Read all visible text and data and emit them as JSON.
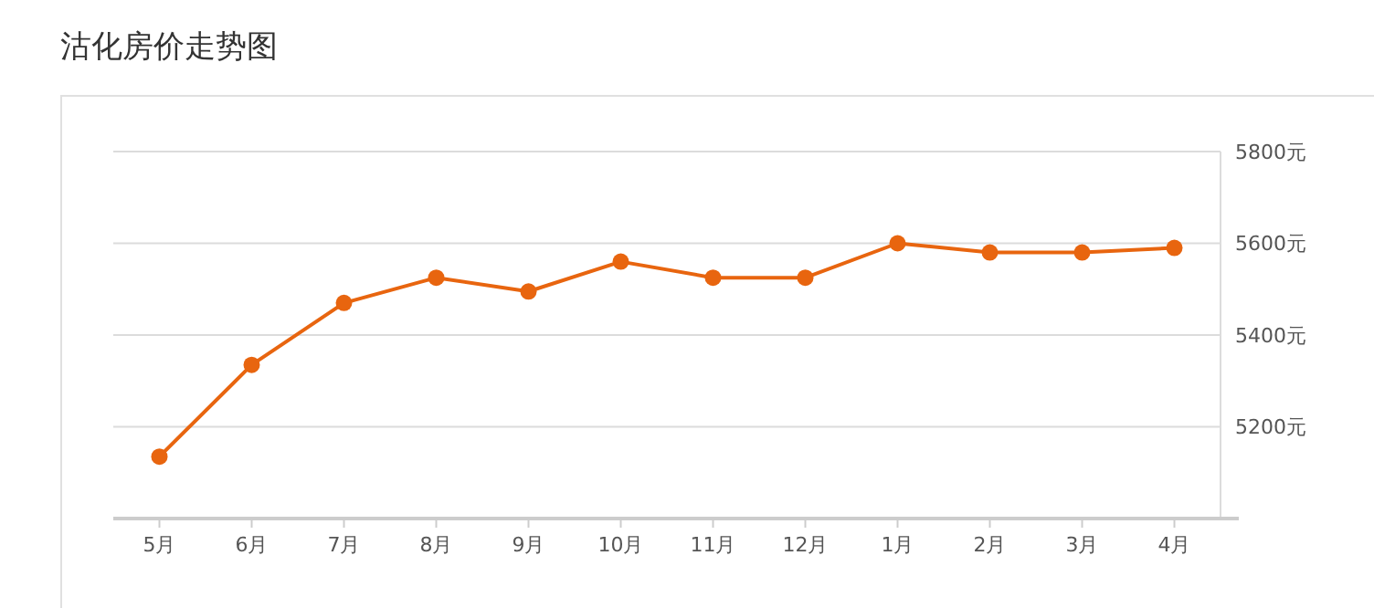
{
  "chart_data": {
    "type": "line",
    "title": "沽化房价走势图",
    "categories": [
      "5月",
      "6月",
      "7月",
      "8月",
      "9月",
      "10月",
      "11月",
      "12月",
      "1月",
      "2月",
      "3月",
      "4月"
    ],
    "series": [
      {
        "color": "#e8650f",
        "values": [
          5135,
          5335,
          5470,
          5525,
          5495,
          5560,
          5525,
          5525,
          5600,
          5580,
          5580,
          5590
        ]
      }
    ],
    "ylim": [
      5000,
      5800
    ],
    "yticks": [
      {
        "value": 5200,
        "label": "5200元"
      },
      {
        "value": 5400,
        "label": "5400元"
      },
      {
        "value": 5600,
        "label": "5600元"
      },
      {
        "value": 5800,
        "label": "5800元"
      }
    ],
    "grid": "y",
    "marker": "circle",
    "line_style": "solid"
  }
}
